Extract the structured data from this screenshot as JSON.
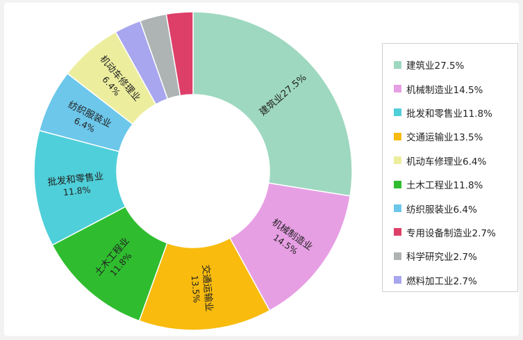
{
  "chart_data": {
    "type": "pie",
    "donut": true,
    "legend_position": "right",
    "slices": [
      {
        "name": "建筑业",
        "value": 27.5,
        "label": "建筑业27.5%",
        "value_label": "",
        "color": "#9ed8c0"
      },
      {
        "name": "机械制造业",
        "value": 14.5,
        "label": "机械制造业",
        "value_label": "14.5%",
        "color": "#e79fe4"
      },
      {
        "name": "交通运输业",
        "value": 13.5,
        "label": "交通运输业",
        "value_label": "13.5%",
        "color": "#f8bb0e"
      },
      {
        "name": "土木工程业",
        "value": 11.8,
        "label": "土木工程业",
        "value_label": "11.8%",
        "color": "#2fbd2f"
      },
      {
        "name": "批发和零售业",
        "value": 11.8,
        "label": "批发和零售业",
        "value_label": "11.8%",
        "color": "#4fcfd9"
      },
      {
        "name": "纺织服装业",
        "value": 6.4,
        "label": "纺织服装业",
        "value_label": "6.4%",
        "color": "#6cc7ea"
      },
      {
        "name": "机动车修理业",
        "value": 6.4,
        "label": "机动车修理业",
        "value_label": "6.4%",
        "color": "#ecee9e"
      },
      {
        "name": "燃料加工业",
        "value": 2.7,
        "label": "",
        "value_label": "",
        "color": "#a8a6ee"
      },
      {
        "name": "科学研究业",
        "value": 2.7,
        "label": "",
        "value_label": "",
        "color": "#aeb4b4"
      },
      {
        "name": "专用设备制造业",
        "value": 2.7,
        "label": "",
        "value_label": "",
        "color": "#dd3f69"
      }
    ],
    "legend": [
      {
        "text": "建筑业27.5%",
        "color": "#9ed8c0"
      },
      {
        "text": "机械制造业14.5%",
        "color": "#e79fe4"
      },
      {
        "text": "批发和零售业11.8%",
        "color": "#4fcfd9"
      },
      {
        "text": "交通运输业13.5%",
        "color": "#f8bb0e"
      },
      {
        "text": "机动车修理业6.4%",
        "color": "#ecee9e"
      },
      {
        "text": "土木工程业11.8%",
        "color": "#2fbd2f"
      },
      {
        "text": "纺织服装业6.4%",
        "color": "#6cc7ea"
      },
      {
        "text": "专用设备制造业2.7%",
        "color": "#dd3f69"
      },
      {
        "text": "科学研究业2.7%",
        "color": "#aeb4b4"
      },
      {
        "text": "燃料加工业2.7%",
        "color": "#a8a6ee"
      }
    ]
  }
}
